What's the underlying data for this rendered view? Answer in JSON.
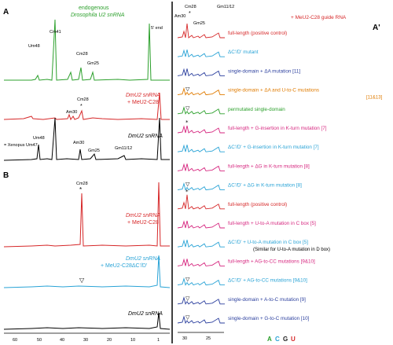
{
  "panel_labels": {
    "a": "A",
    "a_prime": "A'",
    "b": "B"
  },
  "left_panel": {
    "traces": [
      {
        "name": "endogenous",
        "title": "endogenous",
        "subtitle": "Drosophila U2 snRNA",
        "color": "#2ca02c",
        "peaks": [
          {
            "label": "Um48"
          },
          {
            "label": "Cm41"
          },
          {
            "label": "Cm28"
          },
          {
            "label": "Gm25"
          },
          {
            "label": "5' end"
          }
        ]
      },
      {
        "name": "dmu2-meu2c28",
        "title": "DmU2 snRNA",
        "subtitle": "+ MeU2-C28",
        "color": "#d62728",
        "peaks": [
          {
            "label": "Cm28"
          },
          {
            "label": "Am30"
          }
        ]
      },
      {
        "name": "dmu2-a",
        "title": "DmU2 snRNA",
        "subtitle": "",
        "color": "#000000",
        "peaks": [
          {
            "label": "Um48"
          },
          {
            "label": "= Xenopus Um47"
          },
          {
            "label": "Am30"
          },
          {
            "label": "Gm25"
          },
          {
            "label": "Gm11/12"
          }
        ]
      },
      {
        "name": "dmu2-meu2c28-b",
        "title": "DmU2 snRNA",
        "subtitle": "+ MeU2-C28",
        "color": "#d62728",
        "peaks": [
          {
            "label": "Cm28"
          }
        ]
      },
      {
        "name": "dmu2-meu2c28-delta",
        "title": "DmU2 snRNA",
        "subtitle": "+ MeU2-C28ΔC'/D'",
        "color": "#29a3d6",
        "peaks": []
      },
      {
        "name": "dmu2-b",
        "title": "DmU2 snRNA",
        "subtitle": "",
        "color": "#000000",
        "peaks": []
      }
    ],
    "x_ticks": [
      "60",
      "50",
      "40",
      "30",
      "20",
      "10",
      "1"
    ]
  },
  "right_panel": {
    "header_peaks": [
      "Am30",
      "Cm28",
      "Gm25",
      "Gm11/12"
    ],
    "header_note": "+ MeU2-C28 guide RNA",
    "rows": [
      {
        "text": "full-length (positive control)",
        "color": "#d62728",
        "marker": ""
      },
      {
        "text": "ΔC'/D' mutant",
        "color": "#29a3d6",
        "marker": ""
      },
      {
        "text": "single-domain + ΔA mutation [11]",
        "color": "#2b3f9e",
        "marker": ""
      },
      {
        "text": "single-domain + ΔA and U-to-C mutations",
        "text2": "[11&13]",
        "color": "#e07b00",
        "marker": "▽"
      },
      {
        "text": "permutated single-domain",
        "color": "#2ca02c",
        "marker": "▽"
      },
      {
        "text": "full-length + G-insertion in K-turn mutation [7]",
        "color": "#d6267f",
        "marker": "*"
      },
      {
        "text": "ΔC'/D' + G-insertion in K-turn mutation [7]",
        "color": "#29a3d6",
        "marker": ""
      },
      {
        "text": "full-length + ΔG in K-turn mutation [8]",
        "color": "#d6267f",
        "marker": ""
      },
      {
        "text": "ΔC'/D' + ΔG in K-turn mutation [8]",
        "color": "#29a3d6",
        "marker": "▽"
      },
      {
        "text": "full-length (positive control)",
        "color": "#d62728",
        "marker": "*"
      },
      {
        "text": "full-length + U-to-A mutation in C box [5]",
        "color": "#d6267f",
        "marker": ""
      },
      {
        "text": "ΔC'/D' + U-to-A mutation in C box [5]",
        "text2": "(Similar for U-to-A mutation in D box)",
        "color": "#29a3d6",
        "marker": ""
      },
      {
        "text": "full-length + AG-to-CC mutations [9&10]",
        "color": "#d6267f",
        "marker": ""
      },
      {
        "text": "ΔC'/D' + AG-to-CC mutations [9&10]",
        "color": "#29a3d6",
        "marker": "▽"
      },
      {
        "text": "single-domain + A-to-C mutation [9]",
        "color": "#2b3f9e",
        "marker": "▽"
      },
      {
        "text": "single-domain + G-to-C mutation [10]",
        "color": "#2b3f9e",
        "marker": "▽"
      }
    ],
    "x_ticks": [
      "30",
      "25"
    ],
    "base_legend": [
      {
        "letter": "A",
        "color": "#2ca02c"
      },
      {
        "letter": "C",
        "color": "#29a3d6"
      },
      {
        "letter": "G",
        "color": "#222222"
      },
      {
        "letter": "U",
        "color": "#d62728"
      }
    ]
  }
}
